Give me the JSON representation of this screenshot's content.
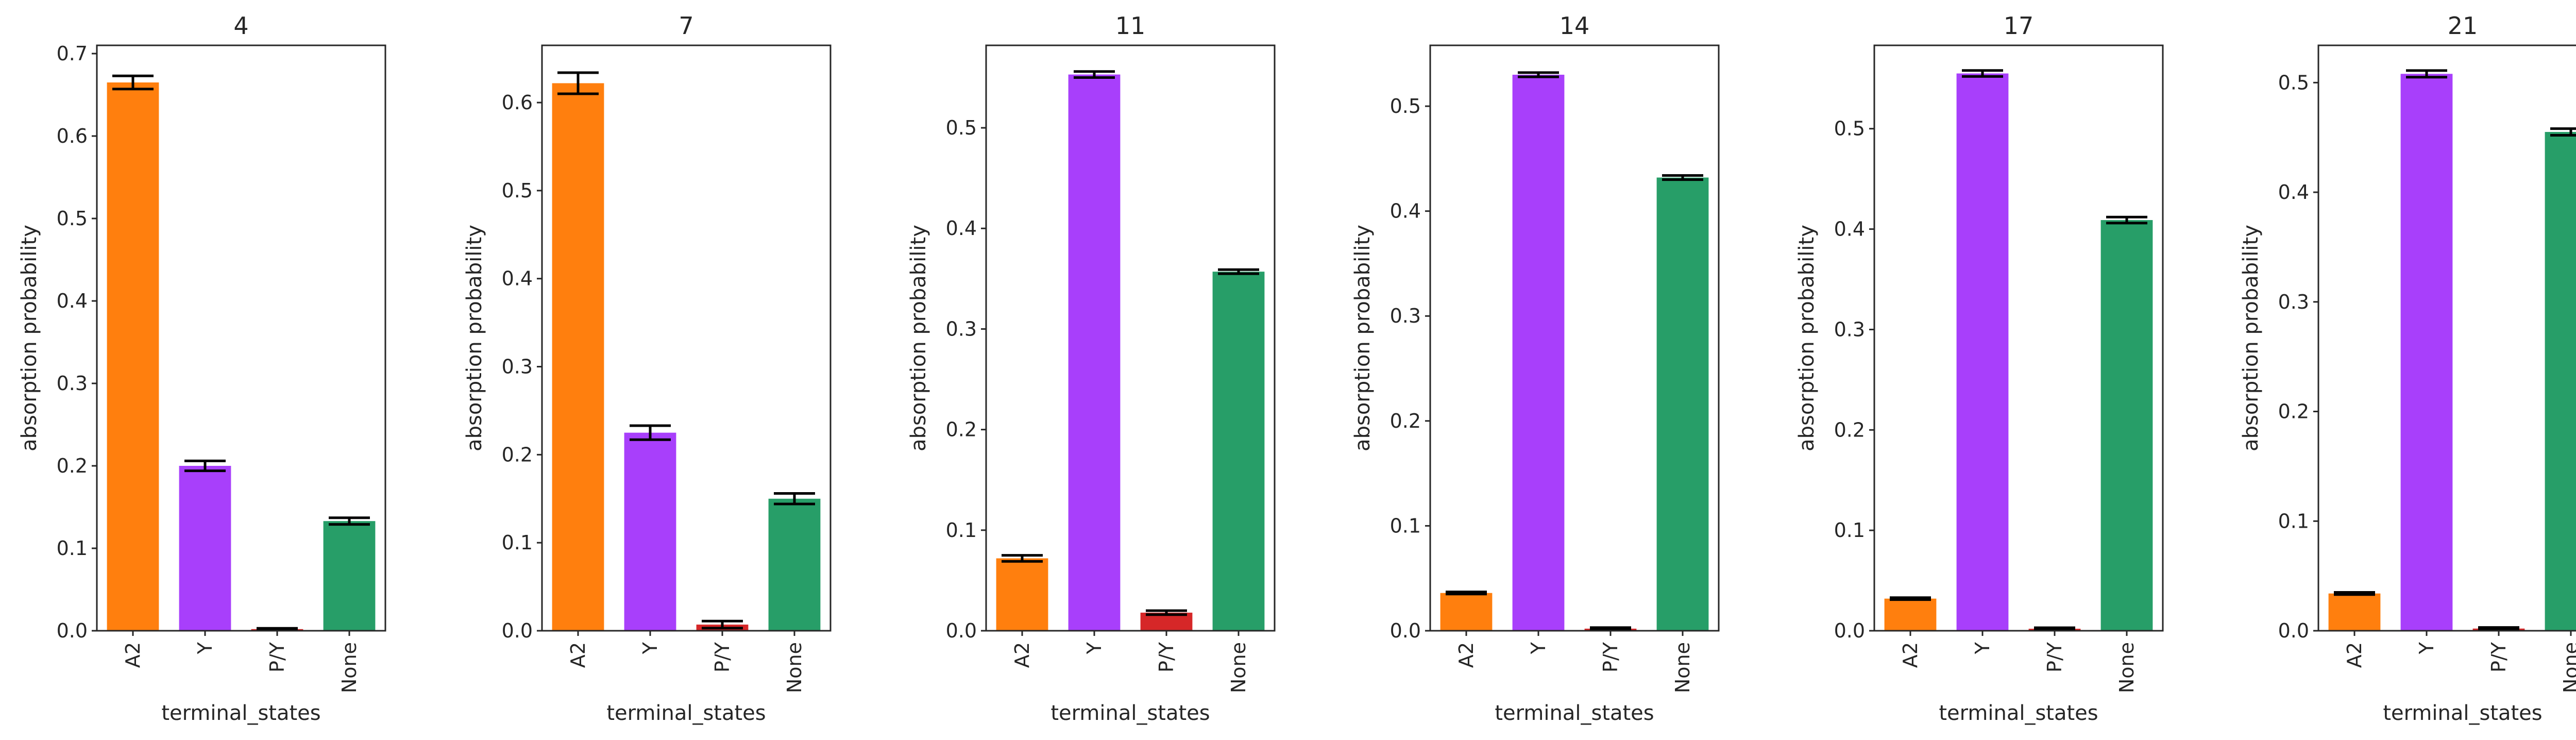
{
  "chart_data": [
    {
      "type": "bar",
      "title": "4",
      "xlabel": "terminal_states",
      "ylabel": "absorption probability",
      "categories": [
        "A2",
        "Y",
        "P/Y",
        "None"
      ],
      "values": [
        0.665,
        0.2,
        0.002,
        0.133
      ],
      "errors": [
        0.008,
        0.006,
        0.001,
        0.004
      ],
      "colors": [
        "#ff7f0e",
        "#a83ffb",
        "#d62728",
        "#279e68"
      ],
      "ylim": [
        0,
        0.71
      ],
      "yticks": [
        0.0,
        0.1,
        0.2,
        0.3,
        0.4,
        0.5,
        0.6,
        0.7
      ],
      "grid": false
    },
    {
      "type": "bar",
      "title": "7",
      "xlabel": "terminal_states",
      "ylabel": "absorption probability",
      "categories": [
        "A2",
        "Y",
        "P/Y",
        "None"
      ],
      "values": [
        0.622,
        0.225,
        0.007,
        0.15
      ],
      "errors": [
        0.012,
        0.008,
        0.004,
        0.006
      ],
      "colors": [
        "#ff7f0e",
        "#a83ffb",
        "#d62728",
        "#279e68"
      ],
      "ylim": [
        0,
        0.665
      ],
      "yticks": [
        0.0,
        0.1,
        0.2,
        0.3,
        0.4,
        0.5,
        0.6
      ],
      "grid": false
    },
    {
      "type": "bar",
      "title": "11",
      "xlabel": "terminal_states",
      "ylabel": "absorption probability",
      "categories": [
        "A2",
        "Y",
        "P/Y",
        "None"
      ],
      "values": [
        0.072,
        0.553,
        0.018,
        0.357
      ],
      "errors": [
        0.003,
        0.003,
        0.002,
        0.002
      ],
      "colors": [
        "#ff7f0e",
        "#a83ffb",
        "#d62728",
        "#279e68"
      ],
      "ylim": [
        0,
        0.582
      ],
      "yticks": [
        0.0,
        0.1,
        0.2,
        0.3,
        0.4,
        0.5
      ],
      "grid": false
    },
    {
      "type": "bar",
      "title": "14",
      "xlabel": "terminal_states",
      "ylabel": "absorption probability",
      "categories": [
        "A2",
        "Y",
        "P/Y",
        "None"
      ],
      "values": [
        0.036,
        0.53,
        0.002,
        0.432
      ],
      "errors": [
        0.001,
        0.002,
        0.001,
        0.002
      ],
      "colors": [
        "#ff7f0e",
        "#a83ffb",
        "#d62728",
        "#279e68"
      ],
      "ylim": [
        0,
        0.558
      ],
      "yticks": [
        0.0,
        0.1,
        0.2,
        0.3,
        0.4,
        0.5
      ],
      "grid": false
    },
    {
      "type": "bar",
      "title": "17",
      "xlabel": "terminal_states",
      "ylabel": "absorption probability",
      "categories": [
        "A2",
        "Y",
        "P/Y",
        "None"
      ],
      "values": [
        0.032,
        0.555,
        0.002,
        0.409
      ],
      "errors": [
        0.001,
        0.003,
        0.001,
        0.003
      ],
      "colors": [
        "#ff7f0e",
        "#a83ffb",
        "#d62728",
        "#279e68"
      ],
      "ylim": [
        0,
        0.583
      ],
      "yticks": [
        0.0,
        0.1,
        0.2,
        0.3,
        0.4,
        0.5
      ],
      "grid": false
    },
    {
      "type": "bar",
      "title": "21",
      "xlabel": "terminal_states",
      "ylabel": "absorption probability",
      "categories": [
        "A2",
        "Y",
        "P/Y",
        "None"
      ],
      "values": [
        0.034,
        0.508,
        0.002,
        0.455
      ],
      "errors": [
        0.001,
        0.003,
        0.001,
        0.003
      ],
      "colors": [
        "#ff7f0e",
        "#a83ffb",
        "#d62728",
        "#279e68"
      ],
      "ylim": [
        0,
        0.534
      ],
      "yticks": [
        0.0,
        0.1,
        0.2,
        0.3,
        0.4,
        0.5
      ],
      "grid": false
    }
  ]
}
